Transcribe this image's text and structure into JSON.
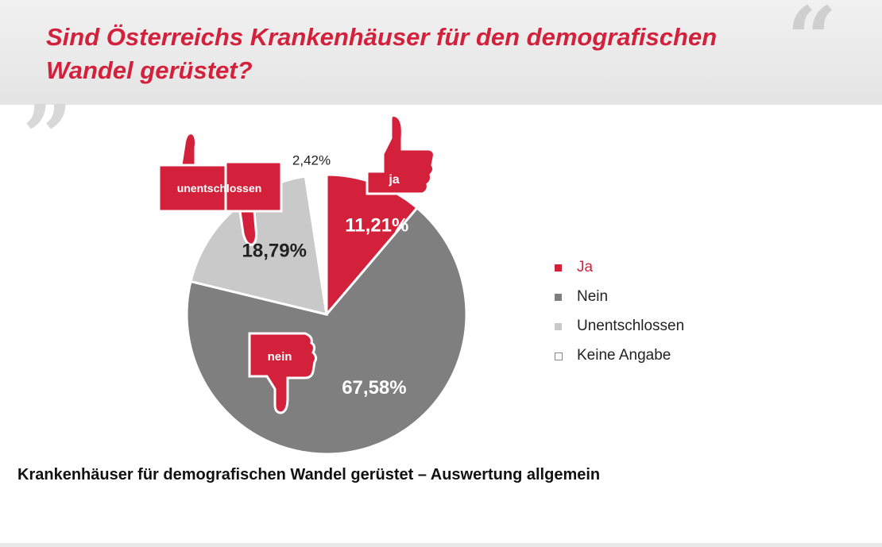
{
  "page": {
    "title": "Sind Österreichs Krankenhäuser für den demografischen Wandel gerüstet?",
    "caption": "Krankenhäuser für demografischen Wandel gerüstet – Auswertung allgemein",
    "quote_glyph_open": "„",
    "quote_glyph_close": "“"
  },
  "icons": {
    "ja": "thumbs-up-icon",
    "nein": "thumbs-down-icon",
    "unentschlossen": "thumbs-sideways-icon"
  },
  "chart_data": {
    "type": "pie",
    "title": "",
    "categories": [
      "Ja",
      "Nein",
      "Unentschlossen",
      "Keine Angabe"
    ],
    "values": [
      11.21,
      67.58,
      18.79,
      2.42
    ],
    "labels": [
      "11,21%",
      "67,58%",
      "18,79%",
      "2,42%"
    ],
    "colors": [
      "#d4213b",
      "#7f7f80",
      "#c9c9c9",
      "#ffffff"
    ],
    "legend": {
      "position": "right",
      "items": [
        {
          "label": "Ja",
          "color": "#d4213b"
        },
        {
          "label": "Nein",
          "color": "#7f7f80"
        },
        {
          "label": "Unentschlossen",
          "color": "#c9c9c9"
        },
        {
          "label": "Keine Angabe",
          "color": "#ffffff"
        }
      ]
    },
    "badges": [
      "ja",
      "nein",
      "unentschlossen"
    ]
  }
}
